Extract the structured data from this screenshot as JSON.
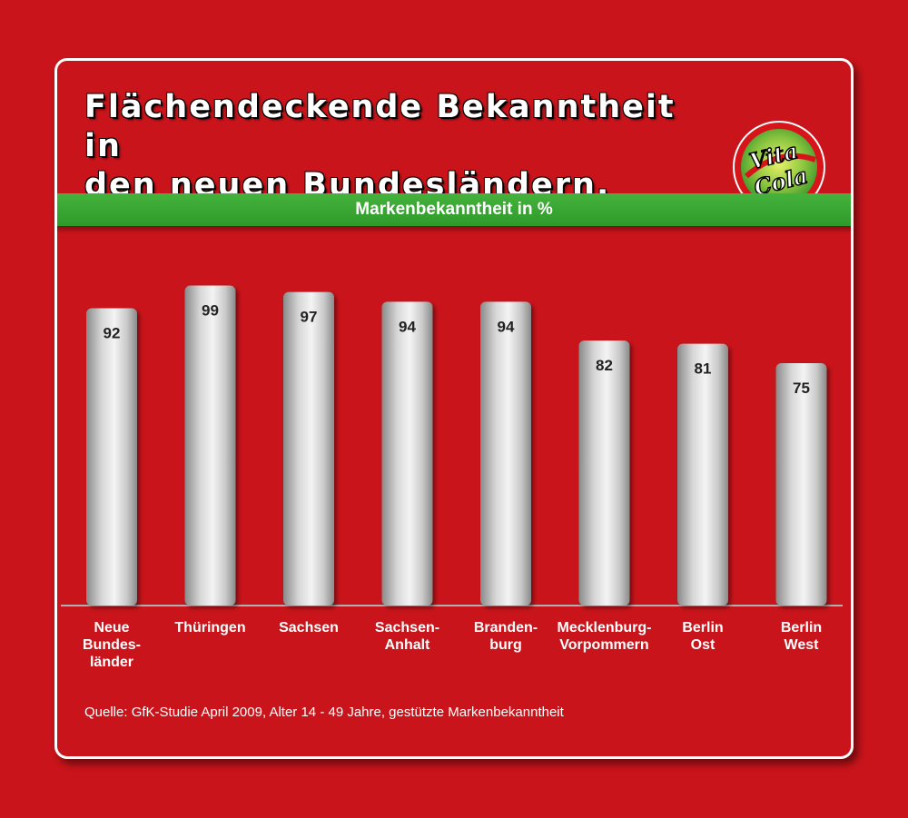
{
  "title": "Flächendeckende Bekanntheit in\nden neuen Bundesländern.",
  "subtitle": "Markenbekanntheit in %",
  "source": "Quelle: GfK-Studie April 2009, Alter 14 - 49 Jahre, gestützte Markenbekanntheit",
  "logo": {
    "line1": "Vita",
    "line2": "Cola"
  },
  "colors": {
    "background": "#c8141a",
    "band": "#3aa834",
    "text": "#ffffff",
    "bar_light": "#f4f4f4",
    "bar_dark": "#8a8a8a"
  },
  "chart_data": {
    "type": "bar",
    "ylabel": "Markenbekanntheit in %",
    "ylim": [
      0,
      100
    ],
    "grid": false,
    "categories": [
      [
        "Neue",
        "Bundes-",
        "länder"
      ],
      [
        "Thüringen"
      ],
      [
        "Sachsen"
      ],
      [
        "Sachsen-",
        "Anhalt"
      ],
      [
        "Branden-",
        "burg"
      ],
      [
        "Mecklenburg-",
        "Vorpommern"
      ],
      [
        "Berlin",
        "Ost"
      ],
      [
        "Berlin",
        "West"
      ]
    ],
    "values": [
      92,
      99,
      97,
      94,
      94,
      82,
      81,
      75
    ]
  }
}
